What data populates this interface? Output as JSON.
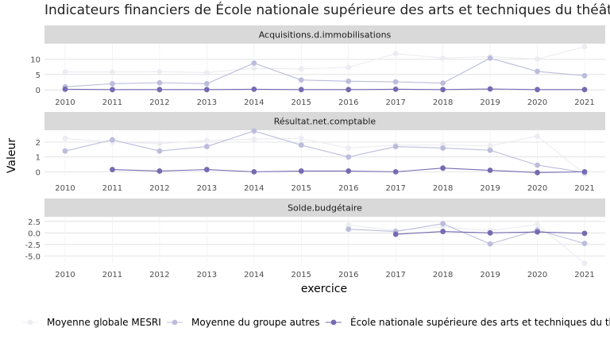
{
  "chart_data": {
    "type": "line",
    "title": "Indicateurs financiers de École nationale supérieure des arts et techniques du théâtre",
    "xlabel": "exercice",
    "ylabel": "Valeur",
    "x": [
      2010,
      2011,
      2012,
      2013,
      2014,
      2015,
      2016,
      2017,
      2018,
      2019,
      2020,
      2021
    ],
    "series_names": [
      "Moyenne globale MESRI",
      "Moyenne du groupe autres",
      "École nationale supérieure des arts et techniques du théâtre"
    ],
    "colors": [
      "#ececf2",
      "#bcbddc",
      "#756bb1"
    ],
    "grid": true,
    "legend_position": "bottom",
    "facets": [
      {
        "name": "Acquisitions.d.immobilisations",
        "ylim": [
          -1.5,
          15
        ],
        "yticks": [
          0,
          5,
          10
        ],
        "ytick_labels": [
          "0",
          "5",
          "10"
        ],
        "series": [
          {
            "values": [
              5.8,
              5.8,
              5.9,
              5.6,
              7.0,
              6.8,
              7.3,
              11.8,
              10.3,
              10.8,
              10.0,
              14.0
            ]
          },
          {
            "values": [
              1.0,
              2.0,
              2.3,
              2.0,
              8.7,
              3.2,
              2.8,
              2.6,
              2.2,
              10.3,
              6.0,
              4.6
            ]
          },
          {
            "values": [
              0.2,
              0.1,
              0.1,
              0.1,
              0.2,
              0.1,
              0.1,
              0.2,
              0.1,
              0.3,
              0.1,
              0.1
            ]
          }
        ]
      },
      {
        "name": "Résultat.net.comptable",
        "ylim": [
          -0.3,
          2.8
        ],
        "yticks": [
          0,
          1,
          2
        ],
        "ytick_labels": [
          "0",
          "1",
          "2"
        ],
        "series": [
          {
            "values": [
              2.25,
              2.0,
              1.9,
              2.1,
              2.2,
              2.25,
              1.6,
              1.8,
              1.8,
              1.75,
              2.4,
              -0.15
            ]
          },
          {
            "values": [
              1.4,
              2.15,
              1.4,
              1.7,
              2.75,
              1.8,
              1.0,
              1.7,
              1.6,
              1.45,
              0.45,
              -0.05
            ]
          },
          {
            "values": [
              null,
              0.15,
              0.05,
              0.15,
              0.0,
              0.05,
              0.05,
              0.0,
              0.25,
              0.1,
              -0.05,
              0.0
            ]
          }
        ]
      },
      {
        "name": "Solde.budgétaire",
        "ylim": [
          -6.5,
          3.5
        ],
        "yticks": [
          2.5,
          0.0,
          -2.5,
          -5.0
        ],
        "ytick_labels": [
          "2.5",
          "0.0",
          "-2.5",
          "-5.0"
        ],
        "series": [
          {
            "values": [
              null,
              null,
              null,
              null,
              null,
              null,
              1.7,
              0.5,
              1.3,
              0.5,
              1.8,
              -6.6
            ]
          },
          {
            "values": [
              null,
              null,
              null,
              null,
              null,
              null,
              0.8,
              0.3,
              2.0,
              -2.4,
              0.6,
              -2.3
            ]
          },
          {
            "values": [
              null,
              null,
              null,
              null,
              null,
              null,
              null,
              -0.3,
              0.3,
              0.0,
              0.2,
              -0.1
            ]
          }
        ]
      }
    ]
  }
}
